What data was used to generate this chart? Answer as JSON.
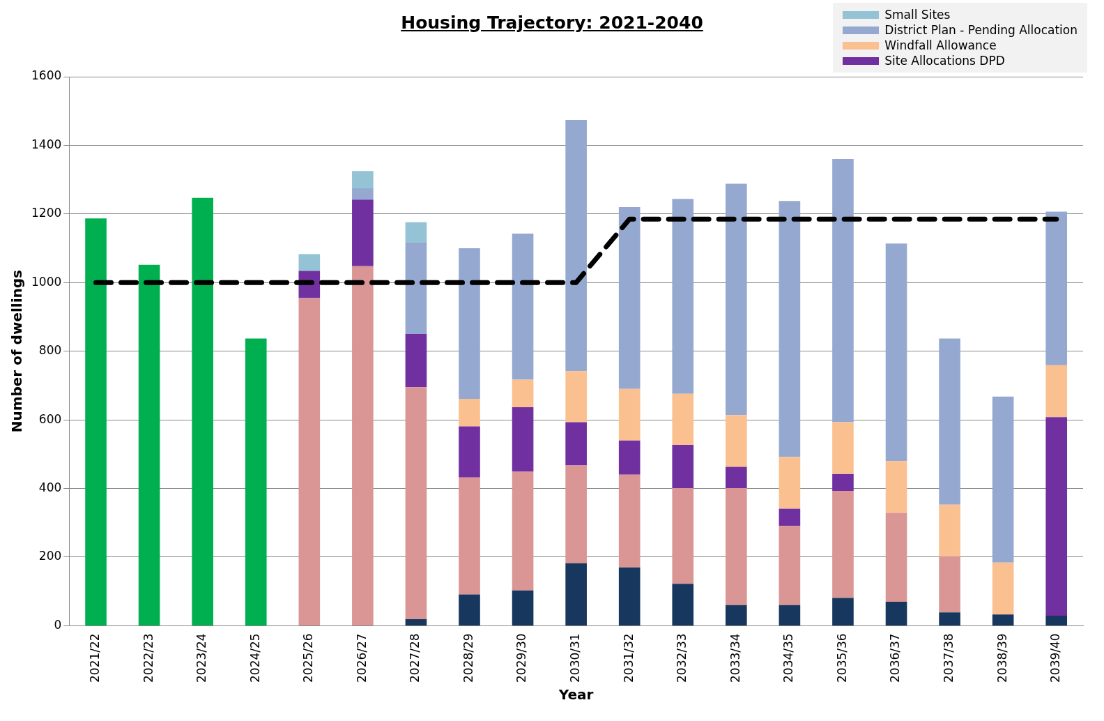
{
  "chart_data": {
    "type": "bar",
    "stacked": true,
    "title": "Housing Trajectory: 2021-2040",
    "xlabel": "Year",
    "ylabel": "Number of dwellings",
    "categories": [
      "2021/22",
      "2022/23",
      "2023/24",
      "2024/25",
      "2025/26",
      "2026/27",
      "2027/28",
      "2028/29",
      "2029/30",
      "2030/31",
      "2031/32",
      "2032/33",
      "2033/34",
      "2034/35",
      "2035/36",
      "2036/37",
      "2037/38",
      "2038/39",
      "2039/40"
    ],
    "series": [
      {
        "color": "#00b050",
        "values": [
          1187,
          1052,
          1247,
          837,
          null,
          null,
          null,
          null,
          null,
          null,
          null,
          null,
          null,
          null,
          null,
          null,
          null,
          null,
          null
        ]
      },
      {
        "color": "#17375e",
        "values": [
          null,
          null,
          null,
          null,
          0,
          0,
          19,
          91,
          103,
          182,
          170,
          122,
          60,
          60,
          81,
          70,
          39,
          33,
          29
        ]
      },
      {
        "color": "#d99694",
        "values": [
          null,
          null,
          null,
          null,
          955,
          1048,
          676,
          341,
          346,
          285,
          270,
          279,
          341,
          231,
          312,
          259,
          164,
          0,
          0
        ]
      },
      {
        "name": "Site Allocations DPD",
        "color": "#7030a0",
        "values": [
          null,
          null,
          null,
          null,
          79,
          194,
          155,
          149,
          188,
          126,
          100,
          126,
          62,
          50,
          49,
          0,
          0,
          0,
          579
        ]
      },
      {
        "name": "Windfall Allowance",
        "color": "#fac090",
        "values": [
          null,
          null,
          null,
          null,
          0,
          0,
          0,
          80,
          80,
          149,
          150,
          149,
          151,
          151,
          151,
          151,
          150,
          151,
          151
        ]
      },
      {
        "name": "District Plan - Pending Allocation",
        "color": "#95a9d0",
        "values": [
          null,
          null,
          null,
          null,
          0,
          33,
          268,
          439,
          426,
          732,
          530,
          568,
          674,
          746,
          767,
          634,
          484,
          484,
          448
        ]
      },
      {
        "name": "Small Sites",
        "color": "#93c3d4",
        "values": [
          null,
          null,
          null,
          null,
          49,
          50,
          58,
          0,
          0,
          0,
          0,
          0,
          0,
          0,
          0,
          0,
          0,
          0,
          0
        ]
      },
      {
        "type": "line",
        "color": "#000000",
        "line_style": "dashed",
        "marker": "none",
        "values": [
          1000,
          1000,
          1000,
          1000,
          1000,
          1000,
          1000,
          1000,
          1000,
          1000,
          1185,
          1185,
          1185,
          1185,
          1185,
          1185,
          1185,
          1185,
          1185
        ]
      }
    ],
    "ylim": [
      0,
      1600
    ],
    "yticks": [
      0,
      200,
      400,
      600,
      800,
      1000,
      1200,
      1400,
      1600
    ],
    "grid": "y",
    "legend": "top right"
  }
}
